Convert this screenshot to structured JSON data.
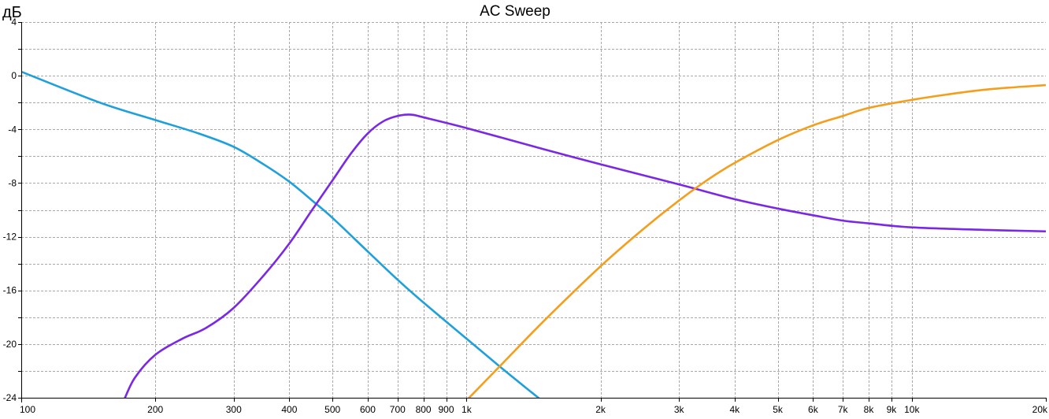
{
  "chart_data": {
    "type": "line",
    "title": "AC Sweep",
    "ylabel": "дБ",
    "xlabel": "",
    "x_scale": "log",
    "xlim": [
      100,
      20000
    ],
    "ylim": [
      -24,
      4
    ],
    "grid": true,
    "x_ticks": [
      100,
      200,
      300,
      400,
      500,
      600,
      700,
      800,
      900,
      1000,
      2000,
      3000,
      4000,
      5000,
      6000,
      7000,
      8000,
      9000,
      10000,
      20000
    ],
    "x_tick_labels": [
      "100",
      "200",
      "300",
      "400",
      "500",
      "600",
      "700",
      "800",
      "900",
      "1k",
      "2k",
      "3k",
      "4k",
      "5k",
      "6k",
      "7k",
      "8k",
      "9k",
      "10k",
      "20k"
    ],
    "y_ticks": [
      4,
      0,
      -4,
      -8,
      -12,
      -16,
      -20,
      -24
    ],
    "y_tick_labels": [
      "4",
      "0",
      "-4",
      "-8",
      "-12",
      "-16",
      "-20",
      "-24"
    ],
    "series": [
      {
        "color": "#1ea0dc",
        "points": [
          [
            100,
            0.3
          ],
          [
            150,
            -2.0
          ],
          [
            200,
            -3.3
          ],
          [
            250,
            -4.3
          ],
          [
            300,
            -5.3
          ],
          [
            350,
            -6.6
          ],
          [
            400,
            -7.9
          ],
          [
            450,
            -9.3
          ],
          [
            500,
            -10.6
          ],
          [
            600,
            -13.1
          ],
          [
            700,
            -15.2
          ],
          [
            800,
            -16.9
          ],
          [
            1000,
            -19.6
          ],
          [
            1200,
            -21.8
          ],
          [
            1400,
            -23.6
          ],
          [
            1500,
            -24.4
          ]
        ]
      },
      {
        "color": "#7a28e6",
        "points": [
          [
            170,
            -24.2
          ],
          [
            180,
            -22.5
          ],
          [
            200,
            -20.8
          ],
          [
            230,
            -19.6
          ],
          [
            260,
            -18.8
          ],
          [
            300,
            -17.3
          ],
          [
            350,
            -14.9
          ],
          [
            400,
            -12.5
          ],
          [
            450,
            -10.0
          ],
          [
            500,
            -7.8
          ],
          [
            550,
            -5.8
          ],
          [
            600,
            -4.3
          ],
          [
            650,
            -3.4
          ],
          [
            700,
            -3.0
          ],
          [
            750,
            -2.9
          ],
          [
            800,
            -3.1
          ],
          [
            1000,
            -3.9
          ],
          [
            1500,
            -5.5
          ],
          [
            2000,
            -6.6
          ],
          [
            3000,
            -8.1
          ],
          [
            4000,
            -9.2
          ],
          [
            5000,
            -9.9
          ],
          [
            6000,
            -10.4
          ],
          [
            7000,
            -10.8
          ],
          [
            8000,
            -11.0
          ],
          [
            10000,
            -11.3
          ],
          [
            15000,
            -11.5
          ],
          [
            20000,
            -11.6
          ]
        ]
      },
      {
        "color": "#f59e1b",
        "points": [
          [
            1000,
            -24.2
          ],
          [
            1200,
            -21.5
          ],
          [
            1500,
            -18.2
          ],
          [
            2000,
            -14.2
          ],
          [
            2500,
            -11.4
          ],
          [
            3000,
            -9.3
          ],
          [
            3500,
            -7.7
          ],
          [
            4000,
            -6.5
          ],
          [
            5000,
            -4.8
          ],
          [
            6000,
            -3.7
          ],
          [
            7000,
            -3.0
          ],
          [
            8000,
            -2.4
          ],
          [
            10000,
            -1.8
          ],
          [
            12000,
            -1.4
          ],
          [
            15000,
            -1.0
          ],
          [
            20000,
            -0.7
          ]
        ]
      }
    ]
  }
}
